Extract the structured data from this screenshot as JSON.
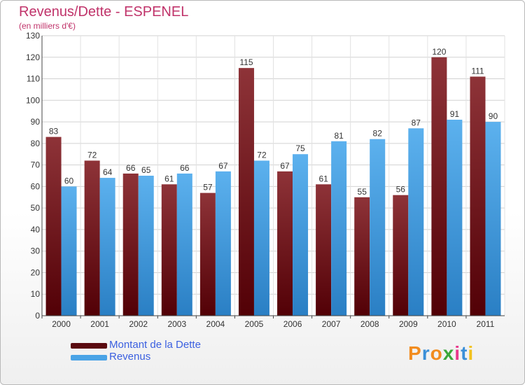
{
  "chart_data": {
    "type": "bar",
    "title": "Revenus/Dette - ESPENEL",
    "subtitle": "(en milliers d'€)",
    "categories": [
      "2000",
      "2001",
      "2002",
      "2003",
      "2004",
      "2005",
      "2006",
      "2007",
      "2008",
      "2009",
      "2010",
      "2011"
    ],
    "series": [
      {
        "name": "Montant de la Dette",
        "values": [
          83,
          72,
          66,
          61,
          57,
          115,
          67,
          61,
          55,
          56,
          120,
          111
        ],
        "color": "#7a1a1f"
      },
      {
        "name": "Revenus",
        "values": [
          60,
          64,
          65,
          66,
          67,
          72,
          75,
          81,
          82,
          87,
          91,
          90
        ],
        "color": "#4aa3e6"
      }
    ],
    "ylim": [
      0,
      130
    ],
    "yticks": [
      0,
      10,
      20,
      30,
      40,
      50,
      60,
      70,
      80,
      90,
      100,
      110,
      120,
      130
    ],
    "grid": true,
    "legend": "bottom-left"
  },
  "logo": {
    "text": "Proxiti",
    "colors": [
      "#f28c1e",
      "#3a8fd8",
      "#f28c1e",
      "#3aa83a",
      "#e83a8c",
      "#3a8fd8",
      "#f2c21e"
    ]
  }
}
